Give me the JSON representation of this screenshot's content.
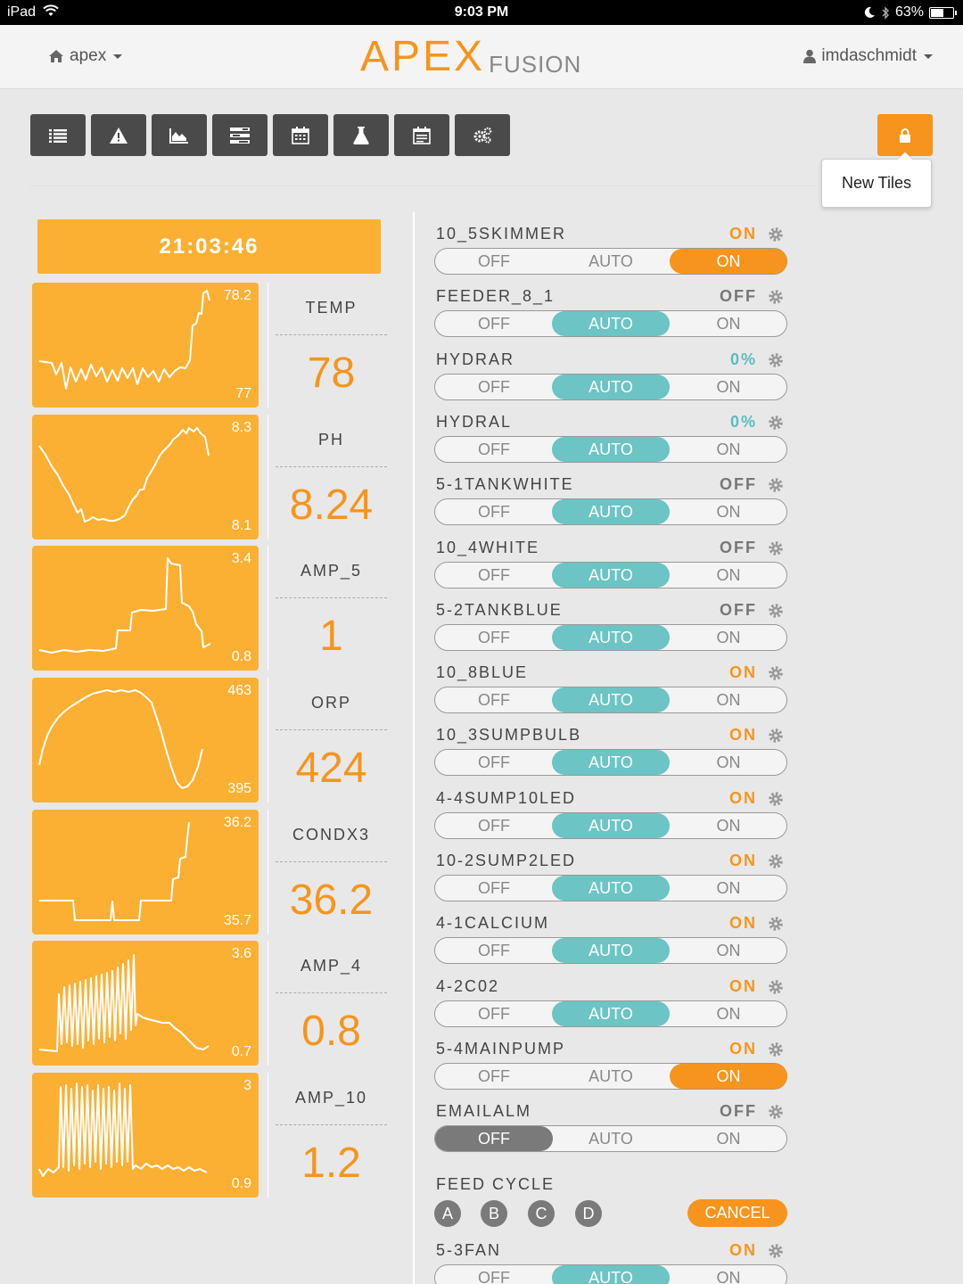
{
  "status_bar": {
    "device": "iPad",
    "time": "9:03 PM",
    "battery": "63%",
    "battery_level": 0.63
  },
  "header": {
    "home_label": "apex",
    "logo_main": "APEX",
    "logo_sub": "FUSION",
    "user_label": "imdaschmidt"
  },
  "toolbar": {
    "icons": [
      "list-icon",
      "warning-icon",
      "area-chart-icon",
      "tasks-icon",
      "calendar-icon",
      "flask-icon",
      "notes-icon",
      "gears-icon"
    ],
    "lock_icon": "lock-icon",
    "tooltip": "New Tiles"
  },
  "colors": {
    "accent": "#f7941d",
    "tile": "#fbb034",
    "auto": "#6cc4c4",
    "off_dark": "#7a7a7a",
    "toolbar": "#4a4a4a",
    "percent": "#5bbcc0"
  },
  "clock": "21:03:46",
  "probes": [
    {
      "name": "TEMP",
      "value": "78",
      "max": "78.2",
      "min": "77"
    },
    {
      "name": "PH",
      "value": "8.24",
      "max": "8.3",
      "min": "8.1"
    },
    {
      "name": "AMP_5",
      "value": "1",
      "max": "3.4",
      "min": "0.8"
    },
    {
      "name": "ORP",
      "value": "424",
      "max": "463",
      "min": "395"
    },
    {
      "name": "CONDX3",
      "value": "36.2",
      "max": "36.2",
      "min": "35.7"
    },
    {
      "name": "AMP_4",
      "value": "0.8",
      "max": "3.6",
      "min": "0.7"
    },
    {
      "name": "AMP_10",
      "value": "1.2",
      "max": "3",
      "min": "0.9"
    }
  ],
  "outlet_options": [
    "OFF",
    "AUTO",
    "ON"
  ],
  "outlets": [
    {
      "name": "10_5SKIMMER",
      "state": "ON",
      "mode": "ON"
    },
    {
      "name": "FEEDER_8_1",
      "state": "OFF",
      "mode": "AUTO"
    },
    {
      "name": "HYDRAR",
      "state": "0%",
      "mode": "AUTO"
    },
    {
      "name": "HYDRAL",
      "state": "0%",
      "mode": "AUTO"
    },
    {
      "name": "5-1TANKWHITE",
      "state": "OFF",
      "mode": "AUTO"
    },
    {
      "name": "10_4WHITE",
      "state": "OFF",
      "mode": "AUTO"
    },
    {
      "name": "5-2TANKBLUE",
      "state": "OFF",
      "mode": "AUTO"
    },
    {
      "name": "10_8BLUE",
      "state": "ON",
      "mode": "AUTO"
    },
    {
      "name": "10_3SUMPBULB",
      "state": "ON",
      "mode": "AUTO"
    },
    {
      "name": "4-4SUMP10LED",
      "state": "ON",
      "mode": "AUTO"
    },
    {
      "name": "10-2SUMP2LED",
      "state": "ON",
      "mode": "AUTO"
    },
    {
      "name": "4-1CALCIUM",
      "state": "ON",
      "mode": "AUTO"
    },
    {
      "name": "4-2C02",
      "state": "ON",
      "mode": "AUTO"
    },
    {
      "name": "5-4MAINPUMP",
      "state": "ON",
      "mode": "ON"
    },
    {
      "name": "EMAILALM",
      "state": "OFF",
      "mode": "OFF"
    }
  ],
  "feed_cycle": {
    "title": "FEED CYCLE",
    "buttons": [
      "A",
      "B",
      "C",
      "D"
    ],
    "cancel_label": "CANCEL"
  },
  "last_outlet": {
    "name": "5-3FAN",
    "state": "ON",
    "mode": "AUTO"
  }
}
